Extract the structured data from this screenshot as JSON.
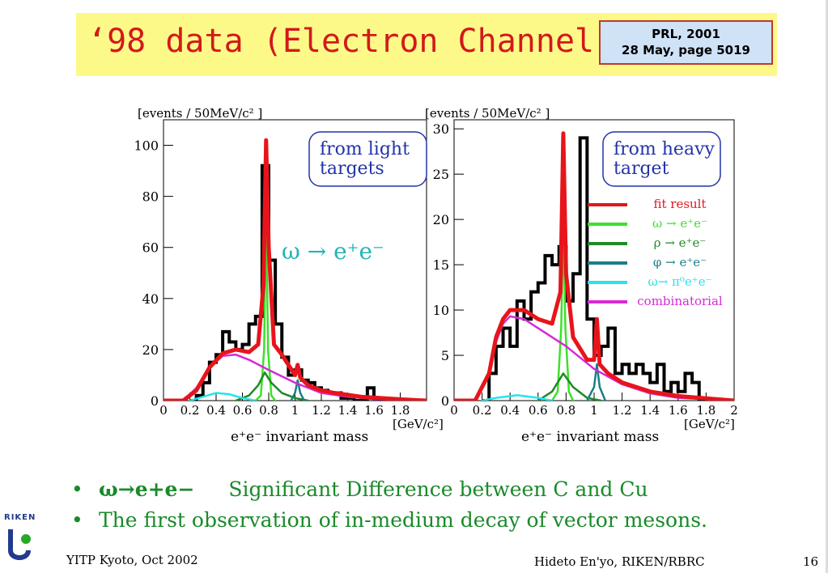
{
  "slide": {
    "title": "‘98 data (Electron Channel)",
    "ref_line1": "PRL,  2001",
    "ref_line2": "28 May, page 5019",
    "colors": {
      "title_band": "#fdf989",
      "title_text": "#d11a1a",
      "ref_box": "#cfe2f6",
      "bullet_green": "#1a8a2a"
    }
  },
  "bullets": [
    {
      "a": "ω→e+e−",
      "b": "Significant   Difference   between C and Cu"
    },
    {
      "a": "The first observation of in-medium decay of vector mesons.",
      "b": ""
    }
  ],
  "footer": {
    "left": "YITP Kyoto, Oct 2002",
    "middle": "Hideto En'yo, RIKEN/RBRC",
    "page": "16",
    "logo_text": "RIKEN"
  },
  "chart_data": [
    {
      "type": "line",
      "ylabel": "[events / 50MeV/c² ]",
      "xlabel": "e⁺e⁻  invariant mass",
      "xunit": "[GeV/c²]",
      "xlim": [
        0,
        2
      ],
      "ylim": [
        0,
        110
      ],
      "xticks": [
        "0",
        "0.2",
        "0.4",
        "0.6",
        "0.8",
        "1",
        "1.2",
        "1.4",
        "1.6",
        "1.8"
      ],
      "yticks": [
        "0",
        "20",
        "40",
        "60",
        "80",
        "100"
      ],
      "annotation_box": [
        "from light",
        "targets"
      ],
      "annotation_decay": "ω → e⁺e⁻",
      "histogram": {
        "bin_width": 0.05,
        "x_start": 0.2,
        "values": [
          0,
          2,
          7,
          15,
          18,
          27,
          23,
          20,
          22,
          30,
          33,
          92,
          55,
          30,
          17,
          10,
          12,
          8,
          7,
          5,
          4,
          3,
          3,
          1,
          1,
          0,
          0,
          5,
          1,
          0,
          0,
          0,
          0,
          0,
          0,
          0
        ]
      },
      "series": [
        {
          "color": "#e8141b",
          "points": [
            [
              0,
              0
            ],
            [
              0.15,
              0
            ],
            [
              0.25,
              4
            ],
            [
              0.35,
              13
            ],
            [
              0.45,
              18.5
            ],
            [
              0.55,
              20
            ],
            [
              0.65,
              19
            ],
            [
              0.72,
              22
            ],
            [
              0.76,
              45
            ],
            [
              0.78,
              102
            ],
            [
              0.8,
              60
            ],
            [
              0.84,
              22
            ],
            [
              0.9,
              18
            ],
            [
              0.95,
              14
            ],
            [
              1.0,
              10
            ],
            [
              1.02,
              14
            ],
            [
              1.04,
              9
            ],
            [
              1.1,
              6
            ],
            [
              1.2,
              4
            ],
            [
              1.3,
              3
            ],
            [
              1.5,
              1.5
            ],
            [
              1.8,
              0.5
            ],
            [
              2,
              0
            ]
          ]
        },
        {
          "color": "#3de12b",
          "points": [
            [
              0.7,
              0
            ],
            [
              0.74,
              2
            ],
            [
              0.765,
              20
            ],
            [
              0.78,
              75
            ],
            [
              0.795,
              20
            ],
            [
              0.82,
              2
            ],
            [
              0.85,
              0
            ]
          ]
        },
        {
          "color": "#1f8a25",
          "points": [
            [
              0.55,
              0
            ],
            [
              0.65,
              2
            ],
            [
              0.72,
              6
            ],
            [
              0.77,
              11
            ],
            [
              0.82,
              7
            ],
            [
              0.9,
              3
            ],
            [
              1.0,
              1
            ],
            [
              1.1,
              0
            ]
          ]
        },
        {
          "color": "#1b7e87",
          "points": [
            [
              0.97,
              0
            ],
            [
              1.0,
              3
            ],
            [
              1.02,
              8
            ],
            [
              1.04,
              3
            ],
            [
              1.07,
              0
            ]
          ]
        },
        {
          "color": "#28e4e8",
          "points": [
            [
              0.2,
              0
            ],
            [
              0.3,
              1.5
            ],
            [
              0.4,
              3
            ],
            [
              0.5,
              2.5
            ],
            [
              0.6,
              1
            ],
            [
              0.7,
              0
            ]
          ]
        },
        {
          "color": "#d62ad6",
          "points": [
            [
              0.15,
              0
            ],
            [
              0.25,
              5
            ],
            [
              0.35,
              13
            ],
            [
              0.45,
              17.5
            ],
            [
              0.55,
              18
            ],
            [
              0.65,
              16
            ],
            [
              0.8,
              12
            ],
            [
              1.0,
              7
            ],
            [
              1.2,
              3
            ],
            [
              1.4,
              1.5
            ],
            [
              1.6,
              0.6
            ],
            [
              2,
              0
            ]
          ]
        }
      ]
    },
    {
      "type": "line",
      "ylabel": "[events / 50MeV/c² ]",
      "xlabel": "e⁺e⁻  invariant mass",
      "xunit": "[GeV/c²]",
      "xlim": [
        0,
        2
      ],
      "ylim": [
        0,
        31
      ],
      "xticks": [
        "0",
        "0.2",
        "0.4",
        "0.6",
        "0.8",
        "1",
        "1.2",
        "1.4",
        "1.6",
        "1.8",
        "2"
      ],
      "yticks": [
        "0",
        "5",
        "10",
        "15",
        "20",
        "25",
        "30"
      ],
      "annotation_box": [
        "from heavy",
        "target"
      ],
      "legend": [
        {
          "label": "fit result",
          "color": "#e8141b"
        },
        {
          "label": "ω → e⁺e⁻",
          "color": "#3de12b"
        },
        {
          "label": "ρ → e⁺e⁻",
          "color": "#1f8a25"
        },
        {
          "label": "φ → e⁺e⁻",
          "color": "#1b7e87"
        },
        {
          "label": "ω→ π⁰e⁺e⁻",
          "color": "#28e4e8"
        },
        {
          "label": "combinatorial",
          "color": "#d62ad6"
        }
      ],
      "histogram": {
        "bin_width": 0.05,
        "x_start": 0.2,
        "values": [
          0,
          3,
          6,
          8,
          6,
          11,
          9,
          12,
          13,
          16,
          15,
          17,
          11,
          14,
          29,
          9,
          5,
          6,
          8,
          3,
          4,
          3,
          4,
          3,
          2,
          4,
          1,
          2,
          1,
          3,
          2,
          0,
          0,
          0,
          0,
          0
        ]
      },
      "series": [
        {
          "color": "#e8141b",
          "points": [
            [
              0,
              0
            ],
            [
              0.15,
              0
            ],
            [
              0.25,
              3
            ],
            [
              0.3,
              7
            ],
            [
              0.35,
              9
            ],
            [
              0.4,
              10
            ],
            [
              0.5,
              10
            ],
            [
              0.6,
              9
            ],
            [
              0.7,
              8.5
            ],
            [
              0.76,
              12
            ],
            [
              0.78,
              29.5
            ],
            [
              0.8,
              14
            ],
            [
              0.85,
              7
            ],
            [
              0.95,
              4.5
            ],
            [
              1.0,
              4.5
            ],
            [
              1.02,
              9
            ],
            [
              1.04,
              4
            ],
            [
              1.1,
              3
            ],
            [
              1.2,
              2
            ],
            [
              1.4,
              1
            ],
            [
              1.6,
              0.5
            ],
            [
              2,
              0
            ]
          ]
        },
        {
          "color": "#3de12b",
          "points": [
            [
              0.7,
              0
            ],
            [
              0.74,
              1
            ],
            [
              0.765,
              8
            ],
            [
              0.78,
              19.5
            ],
            [
              0.795,
              8
            ],
            [
              0.82,
              1
            ],
            [
              0.85,
              0
            ]
          ]
        },
        {
          "color": "#1f8a25",
          "points": [
            [
              0.6,
              0
            ],
            [
              0.7,
              1
            ],
            [
              0.78,
              3
            ],
            [
              0.85,
              1.5
            ],
            [
              0.95,
              0.3
            ],
            [
              1.05,
              0
            ]
          ]
        },
        {
          "color": "#1b7e87",
          "points": [
            [
              0.95,
              0
            ],
            [
              1.0,
              1.5
            ],
            [
              1.02,
              4
            ],
            [
              1.04,
              1.5
            ],
            [
              1.08,
              0
            ]
          ]
        },
        {
          "color": "#28e4e8",
          "points": [
            [
              0.2,
              0
            ],
            [
              0.3,
              0.3
            ],
            [
              0.45,
              0.6
            ],
            [
              0.6,
              0.3
            ],
            [
              0.7,
              0
            ]
          ]
        },
        {
          "color": "#d62ad6",
          "points": [
            [
              0.15,
              0
            ],
            [
              0.25,
              3
            ],
            [
              0.3,
              6.5
            ],
            [
              0.35,
              8.5
            ],
            [
              0.4,
              9.3
            ],
            [
              0.5,
              9
            ],
            [
              0.6,
              8
            ],
            [
              0.8,
              6
            ],
            [
              1.0,
              3.5
            ],
            [
              1.2,
              1.8
            ],
            [
              1.4,
              0.8
            ],
            [
              1.6,
              0.3
            ],
            [
              2,
              0
            ]
          ]
        }
      ]
    }
  ]
}
